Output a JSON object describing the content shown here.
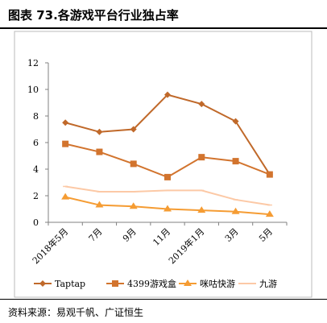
{
  "page": {
    "title": "图表 73.各游戏平台行业独占率",
    "source": "资料来源：易观千帆、广证恒生"
  },
  "chart_data": {
    "type": "line",
    "title": "",
    "xlabel": "",
    "ylabel": "",
    "categories": [
      "2018年5月",
      "7月",
      "9月",
      "11月",
      "2019年1月",
      "3月",
      "5月"
    ],
    "ylim": [
      0,
      12
    ],
    "yticks": [
      0,
      2,
      4,
      6,
      8,
      10,
      12
    ],
    "grid": false,
    "legend_position": "bottom",
    "series": [
      {
        "name": "Taptap",
        "color": "#c0692a",
        "marker": "diamond",
        "values": [
          7.5,
          6.8,
          7.0,
          9.6,
          8.9,
          7.6,
          3.6
        ]
      },
      {
        "name": "4399游戏盒",
        "color": "#d2742e",
        "marker": "square",
        "values": [
          5.9,
          5.3,
          4.4,
          3.4,
          4.9,
          4.6,
          3.6
        ]
      },
      {
        "name": "咪咕快游",
        "color": "#f59c33",
        "marker": "triangle",
        "values": [
          1.9,
          1.3,
          1.2,
          1.0,
          0.9,
          0.8,
          0.6
        ]
      },
      {
        "name": "九游",
        "color": "#fcc9a6",
        "marker": "dash",
        "values": [
          2.7,
          2.3,
          2.3,
          2.4,
          2.4,
          1.7,
          1.3
        ]
      }
    ]
  }
}
